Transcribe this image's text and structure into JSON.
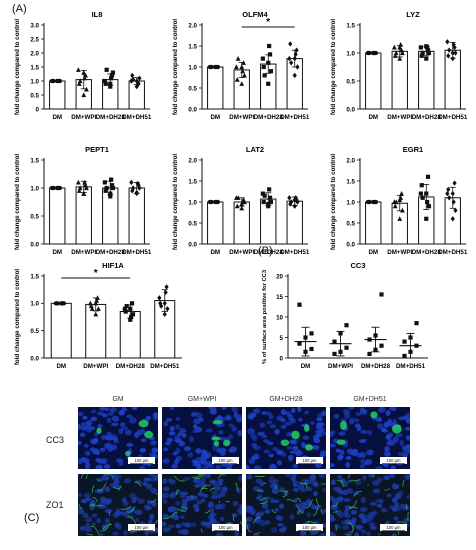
{
  "panel_labels": {
    "a": "(A)",
    "b": "(B)",
    "c": "(C)"
  },
  "chart_data": [
    {
      "type": "bar",
      "title": "IL8",
      "categories": [
        "DM",
        "DM+WPI",
        "DM+DH28",
        "DM+DH51"
      ],
      "values": [
        1.0,
        1.05,
        1.05,
        1.0
      ],
      "errors": [
        0.0,
        0.33,
        0.2,
        0.12
      ],
      "ylabel": "fold change compared to control",
      "ylim": [
        0,
        3
      ],
      "yticks": [
        0,
        0.5,
        1.0,
        1.5,
        2.0,
        2.5,
        3.0
      ],
      "ytick_labels": [
        "0",
        "0.5",
        "1.0",
        "1.5",
        "2.0",
        "2.5",
        "3.0"
      ],
      "points": [
        [
          1,
          1,
          1,
          1,
          1,
          1,
          1,
          1
        ],
        [
          0.5,
          0.7,
          1.4,
          1.2,
          0.9,
          1.1,
          1.0,
          1.3
        ],
        [
          0.8,
          1.3,
          1.0,
          1.2,
          0.9,
          1.1,
          1.4,
          0.9
        ],
        [
          0.8,
          1.1,
          1.0,
          0.9,
          1.2,
          0.95,
          1.05,
          1.0
        ]
      ],
      "markers": [
        "circle",
        "triangle",
        "square",
        "diamond"
      ],
      "significance": null
    },
    {
      "type": "bar",
      "title": "OLFM4",
      "categories": [
        "DM",
        "DM+WPI",
        "DM+DH28",
        "DM+DH51"
      ],
      "values": [
        1.0,
        0.93,
        1.07,
        1.2
      ],
      "errors": [
        0.0,
        0.18,
        0.22,
        0.2
      ],
      "ylabel": "fold change compared to control",
      "ylim": [
        0,
        2.0
      ],
      "yticks": [
        0,
        0.5,
        1.0,
        1.5,
        2.0
      ],
      "ytick_labels": [
        "0.0",
        "0.5",
        "1.0",
        "1.5",
        "2.0"
      ],
      "points": [
        [
          1,
          1,
          1,
          1,
          1,
          1,
          1,
          1
        ],
        [
          0.6,
          0.8,
          1.0,
          1.1,
          0.7,
          0.9,
          1.2,
          1.0
        ],
        [
          0.6,
          0.9,
          1.2,
          1.3,
          1.0,
          1.5,
          0.8,
          1.1
        ],
        [
          0.8,
          1.0,
          1.2,
          1.4,
          1.55,
          1.3,
          1.1,
          1.2
        ]
      ],
      "markers": [
        "circle",
        "triangle",
        "square",
        "diamond"
      ],
      "significance": {
        "from": 1,
        "to": 3,
        "label": "*"
      }
    },
    {
      "type": "bar",
      "title": "LYZ",
      "categories": [
        "DM",
        "DM+WPI",
        "DM+DH28",
        "DM+DH51"
      ],
      "values": [
        1.0,
        1.03,
        1.03,
        1.05
      ],
      "errors": [
        0.0,
        0.1,
        0.08,
        0.14
      ],
      "ylabel": "fold change compared to control",
      "ylim": [
        0,
        1.5
      ],
      "yticks": [
        0,
        0.5,
        1.0,
        1.5
      ],
      "ytick_labels": [
        "0.0",
        "0.5",
        "1.0",
        "1.5"
      ],
      "points": [
        [
          1,
          1,
          1,
          1,
          1,
          1,
          1,
          1
        ],
        [
          0.9,
          1.0,
          1.1,
          1.05,
          0.95,
          1.15,
          1.0,
          1.1
        ],
        [
          0.9,
          1.0,
          1.1,
          1.05,
          0.95,
          1.1,
          1.0,
          1.12
        ],
        [
          0.9,
          1.0,
          1.2,
          1.1,
          0.95,
          1.15,
          1.05,
          1.0
        ]
      ],
      "markers": [
        "circle",
        "triangle",
        "square",
        "diamond"
      ],
      "significance": null
    },
    {
      "type": "bar",
      "title": "PEPT1",
      "categories": [
        "DM",
        "DM+WPI",
        "DM+DH28",
        "DM+DH51"
      ],
      "values": [
        1.0,
        1.02,
        1.0,
        1.0
      ],
      "errors": [
        0.0,
        0.1,
        0.12,
        0.1
      ],
      "ylabel": "fold change compared to control",
      "ylim": [
        0,
        1.5
      ],
      "yticks": [
        0,
        0.5,
        1.0,
        1.5
      ],
      "ytick_labels": [
        "0.0",
        "0.5",
        "1.0",
        "1.5"
      ],
      "points": [
        [
          1,
          1,
          1,
          1,
          1,
          1,
          1,
          1
        ],
        [
          0.9,
          1.0,
          1.1,
          1.05,
          0.95,
          1.1,
          1.0,
          0.9
        ],
        [
          0.85,
          1.0,
          1.1,
          1.05,
          0.95,
          1.15,
          1.0,
          0.9
        ],
        [
          0.9,
          1.0,
          1.1,
          1.05,
          0.95,
          1.08,
          1.0,
          0.92
        ]
      ],
      "markers": [
        "circle",
        "triangle",
        "square",
        "diamond"
      ],
      "significance": null
    },
    {
      "type": "bar",
      "title": "LAT2",
      "categories": [
        "DM",
        "DM+WPI",
        "DM+DH28",
        "DM+DH51"
      ],
      "values": [
        1.0,
        1.0,
        1.07,
        1.02
      ],
      "errors": [
        0.0,
        0.1,
        0.15,
        0.1
      ],
      "ylabel": "fold change compared to control",
      "ylim": [
        0,
        2.0
      ],
      "yticks": [
        0,
        0.5,
        1.0,
        1.5,
        2.0
      ],
      "ytick_labels": [
        "0.0",
        "0.5",
        "1.0",
        "1.5",
        "2.0"
      ],
      "points": [
        [
          1,
          1,
          1,
          1,
          1,
          1,
          1,
          1
        ],
        [
          0.85,
          1.0,
          1.1,
          1.05,
          0.9,
          1.0,
          1.1,
          0.95
        ],
        [
          0.9,
          1.0,
          1.2,
          1.1,
          1.0,
          1.3,
          1.15,
          0.95
        ],
        [
          0.9,
          1.0,
          1.1,
          1.05,
          0.95,
          1.1,
          1.0,
          1.05
        ]
      ],
      "markers": [
        "circle",
        "triangle",
        "square",
        "diamond"
      ],
      "significance": null
    },
    {
      "type": "bar",
      "title": "EGR1",
      "categories": [
        "DM",
        "DM+WPI",
        "DM+DH28",
        "DM+DH51"
      ],
      "values": [
        1.0,
        0.97,
        1.12,
        1.1
      ],
      "errors": [
        0.0,
        0.18,
        0.3,
        0.25
      ],
      "ylabel": "fold change compared to control",
      "ylim": [
        0,
        2.0
      ],
      "yticks": [
        0,
        0.5,
        1.0,
        1.5,
        2.0
      ],
      "ytick_labels": [
        "0.0",
        "0.5",
        "1.0",
        "1.5",
        "2.0"
      ],
      "points": [
        [
          1,
          1,
          1,
          1,
          1,
          1,
          1,
          1
        ],
        [
          0.6,
          0.8,
          1.0,
          1.2,
          0.9,
          1.1,
          1.0,
          1.05
        ],
        [
          0.6,
          0.9,
          1.2,
          1.6,
          1.4,
          1.0,
          1.1,
          1.2
        ],
        [
          0.6,
          0.8,
          1.2,
          1.45,
          1.3,
          1.0,
          1.1,
          1.2
        ]
      ],
      "markers": [
        "circle",
        "triangle",
        "square",
        "diamond"
      ],
      "significance": null
    },
    {
      "type": "bar",
      "title": "HIF1A",
      "categories": [
        "DM",
        "DM+WPI",
        "DM+DH28",
        "DM+DH51"
      ],
      "values": [
        1.0,
        0.98,
        0.85,
        1.05
      ],
      "errors": [
        0.0,
        0.12,
        0.12,
        0.2
      ],
      "ylabel": "fold change compared to control",
      "ylim": [
        0,
        1.5
      ],
      "yticks": [
        0,
        0.5,
        1.0,
        1.5
      ],
      "ytick_labels": [
        "0.0",
        "0.5",
        "1.0",
        "1.5"
      ],
      "points": [
        [
          1,
          1,
          1,
          1,
          1,
          1,
          1,
          1
        ],
        [
          0.8,
          0.9,
          1.0,
          1.1,
          0.95,
          1.05,
          0.9,
          1.0
        ],
        [
          0.7,
          0.8,
          0.9,
          1.0,
          0.85,
          0.75,
          0.95,
          0.9
        ],
        [
          0.8,
          0.9,
          1.1,
          1.3,
          1.0,
          1.2,
          0.95,
          1.0
        ]
      ],
      "markers": [
        "circle",
        "triangle",
        "square",
        "diamond"
      ],
      "significance": {
        "from": 0,
        "to": 2,
        "label": "*"
      }
    },
    {
      "type": "scatter",
      "title": "CC3",
      "categories": [
        "DM",
        "DM+WPI",
        "DM+DH28",
        "DM+DH51"
      ],
      "means": [
        4.0,
        3.5,
        4.5,
        3.0
      ],
      "errors": [
        3.5,
        3.0,
        3.0,
        3.0
      ],
      "ylabel": "% of surface area positive for CC3",
      "ylim": [
        0,
        20
      ],
      "yticks": [
        0,
        5,
        10,
        15,
        20
      ],
      "ytick_labels": [
        "0",
        "5",
        "10",
        "15",
        "20"
      ],
      "points": [
        [
          13.0,
          1.5,
          2.2,
          3.5,
          5.0,
          6.0
        ],
        [
          1.0,
          1.5,
          2.5,
          4.0,
          6.0,
          8.0
        ],
        [
          1.0,
          2.0,
          3.0,
          4.5,
          5.5,
          15.5
        ],
        [
          0.5,
          1.5,
          3.0,
          4.0,
          5.0,
          8.5
        ]
      ],
      "marker": "square"
    }
  ],
  "micrographs": {
    "columns": [
      "GM",
      "GM+WPI",
      "GM+DH28",
      "GM+DH51"
    ],
    "rows": [
      {
        "label": "CC3",
        "scalebar": "100 µm",
        "colors": {
          "bg": "#05103e",
          "cells": "#1e40c8",
          "signal": "#1fd060"
        }
      },
      {
        "label": "ZO1",
        "scalebar": "100 µm",
        "colors": {
          "bg": "#0a1628",
          "cells": "#1c3aa8",
          "signal": "#3ac84a"
        }
      }
    ]
  }
}
